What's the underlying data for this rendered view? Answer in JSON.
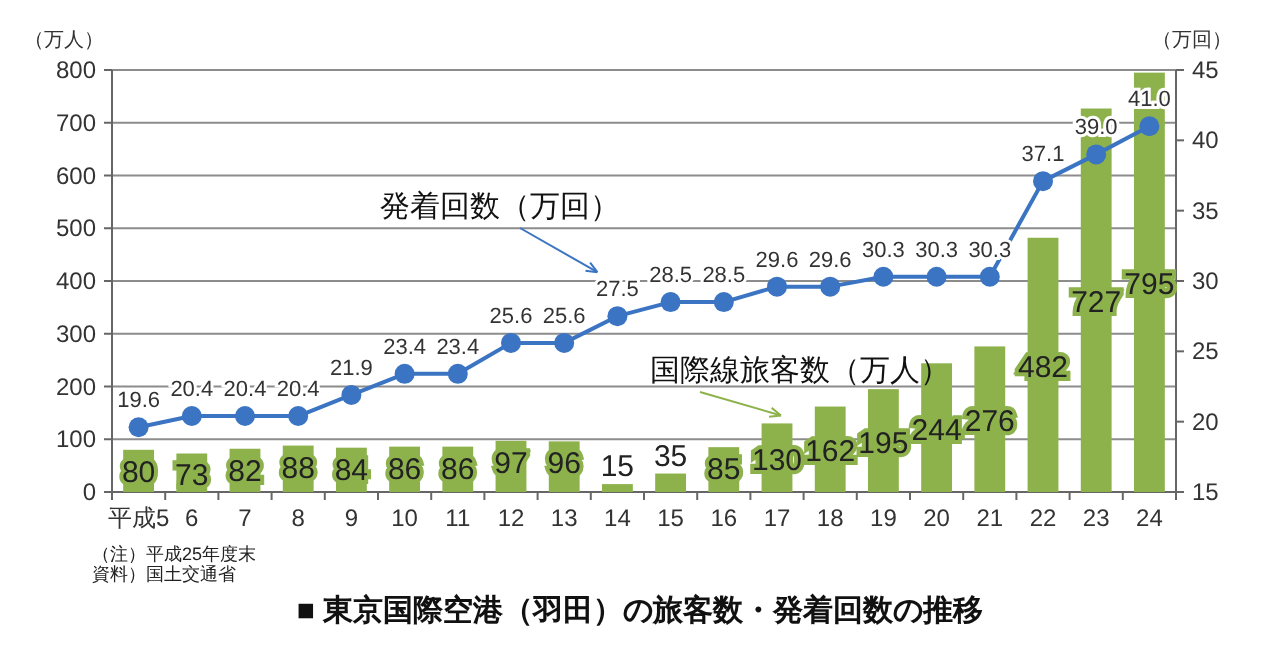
{
  "chart_data": {
    "type": "bar",
    "title": "■ 東京国際空港（羽田）の旅客数・発着回数の推移",
    "ylabel": "（万人）",
    "y2label": "（万回）",
    "categories": [
      "平成5",
      "6",
      "7",
      "8",
      "9",
      "10",
      "11",
      "12",
      "13",
      "14",
      "15",
      "16",
      "17",
      "18",
      "19",
      "20",
      "21",
      "22",
      "23",
      "24"
    ],
    "series": [
      {
        "name": "国際線旅客数（万人）",
        "color": "#8db24c",
        "values": [
          80,
          73,
          82,
          88,
          84,
          86,
          86,
          97,
          96,
          15,
          35,
          85,
          130,
          162,
          195,
          244,
          276,
          482,
          727,
          795
        ],
        "value_labels": [
          "80",
          "73",
          "82",
          "88",
          "84",
          "86",
          "86",
          "97",
          "96",
          "15",
          "35",
          "85",
          "130",
          "162",
          "195",
          "244",
          "276",
          "482",
          "727",
          "795"
        ]
      },
      {
        "name": "発着回数（万回）",
        "type": "line",
        "axis": "y2",
        "color": "#3a74c2",
        "marker": "circle",
        "values": [
          19.6,
          20.4,
          20.4,
          20.4,
          21.9,
          23.4,
          23.4,
          25.6,
          25.6,
          27.5,
          28.5,
          28.5,
          29.6,
          29.6,
          30.3,
          30.3,
          30.3,
          37.1,
          39.0,
          41.0
        ],
        "value_labels": [
          "19.6",
          "20.4",
          "20.4",
          "20.4",
          "21.9",
          "23.4",
          "23.4",
          "25.6",
          "25.6",
          "27.5",
          "28.5",
          "28.5",
          "29.6",
          "29.6",
          "30.3",
          "30.3",
          "30.3",
          "37.1",
          "39.0",
          "41.0"
        ]
      }
    ],
    "ylim": [
      0,
      800
    ],
    "yticks": [
      0,
      100,
      200,
      300,
      400,
      500,
      600,
      700,
      800
    ],
    "y2lim": [
      15,
      45
    ],
    "y2ticks": [
      15,
      20,
      25,
      30,
      35,
      40,
      45
    ],
    "grid": "y",
    "annotations": [
      "（注）平成25年度末",
      "資料）国土交通省"
    ]
  }
}
